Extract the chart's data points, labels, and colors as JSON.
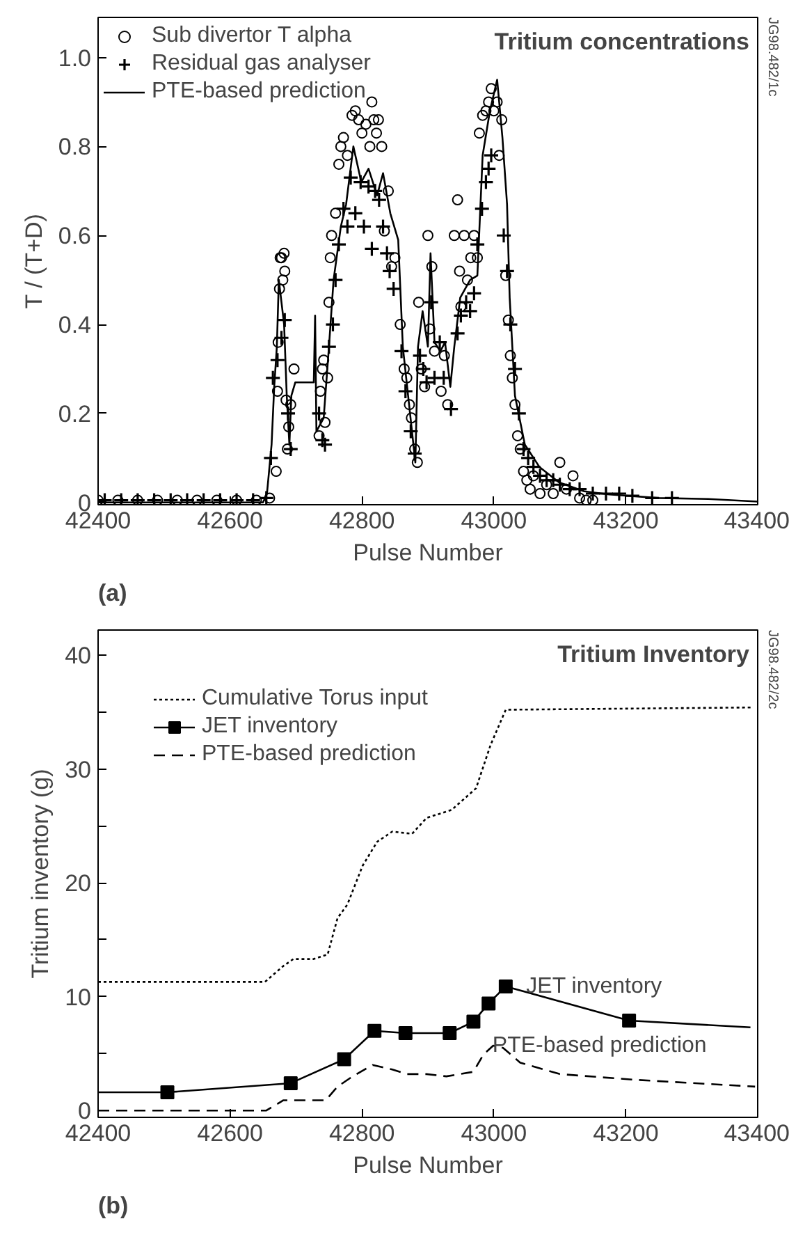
{
  "chart_data": [
    {
      "type": "line",
      "title": "Tritium concentrations",
      "xlabel": "Pulse Number",
      "ylabel": "T / (T+D)",
      "xlim": [
        42400,
        43400
      ],
      "ylim": [
        -0.005,
        1.09
      ],
      "xticks": [
        42400,
        42600,
        42800,
        43000,
        43200,
        43400
      ],
      "yticks": [
        {
          "value": 0,
          "label": "0"
        },
        0.2,
        0.4,
        0.6,
        0.8,
        {
          "value": 1,
          "label": "1.0"
        }
      ],
      "legend": "top left",
      "annotations": [
        "(a)",
        "JG98.482/1c"
      ],
      "series": [
        {
          "name": "Sub divertor T alpha",
          "type": "scatter",
          "marker": "circle",
          "color": "#000000",
          "x": [
            42400,
            42430,
            42460,
            42490,
            42520,
            42550,
            42580,
            42610,
            42640,
            42660,
            42670,
            42672,
            42673,
            42675,
            42676,
            42678,
            42680,
            42682,
            42683,
            42685,
            42687,
            42689,
            42692,
            42697,
            42735,
            42737,
            42740,
            42742,
            42744,
            42748,
            42750,
            42752,
            42754,
            42760,
            42765,
            42768,
            42772,
            42778,
            42785,
            42790,
            42795,
            42800,
            42806,
            42812,
            42815,
            42818,
            42822,
            42825,
            42830,
            42834,
            42840,
            42845,
            42850,
            42858,
            42864,
            42868,
            42872,
            42875,
            42880,
            42884,
            42886,
            42890,
            42895,
            42900,
            42903,
            42906,
            42910,
            42920,
            42925,
            42930,
            42940,
            42945,
            42948,
            42950,
            42955,
            42960,
            42965,
            42970,
            42975,
            42978,
            42983,
            42988,
            42992,
            42996,
            43000,
            43005,
            43008,
            43012,
            43018,
            43022,
            43025,
            43028,
            43032,
            43036,
            43040,
            43045,
            43050,
            43055,
            43060,
            43070,
            43080,
            43090,
            43100,
            43110,
            43120,
            43130,
            43140,
            43150
          ],
          "values": [
            0.005,
            0.005,
            0.005,
            0.005,
            0.005,
            0.005,
            0.005,
            0.005,
            0.005,
            0.01,
            0.07,
            0.25,
            0.36,
            0.48,
            0.55,
            0.55,
            0.5,
            0.56,
            0.52,
            0.23,
            0.12,
            0.17,
            0.22,
            0.3,
            0.15,
            0.25,
            0.3,
            0.32,
            0.18,
            0.28,
            0.45,
            0.55,
            0.6,
            0.65,
            0.76,
            0.8,
            0.82,
            0.78,
            0.87,
            0.88,
            0.86,
            0.83,
            0.85,
            0.8,
            0.9,
            0.86,
            0.83,
            0.86,
            0.8,
            0.61,
            0.7,
            0.53,
            0.55,
            0.4,
            0.3,
            0.28,
            0.22,
            0.19,
            0.12,
            0.09,
            0.45,
            0.3,
            0.26,
            0.6,
            0.39,
            0.53,
            0.34,
            0.25,
            0.33,
            0.22,
            0.6,
            0.68,
            0.52,
            0.44,
            0.6,
            0.5,
            0.55,
            0.6,
            0.55,
            0.83,
            0.87,
            0.88,
            0.9,
            0.93,
            0.88,
            0.9,
            0.78,
            0.86,
            0.51,
            0.41,
            0.33,
            0.28,
            0.22,
            0.15,
            0.12,
            0.07,
            0.05,
            0.03,
            0.06,
            0.02,
            0.04,
            0.02,
            0.09,
            0.03,
            0.06,
            0.01,
            0.005,
            0.005
          ]
        },
        {
          "name": "Residual gas analyser",
          "type": "scatter",
          "marker": "cross",
          "color": "#000000",
          "x": [
            42410,
            42435,
            42460,
            42485,
            42510,
            42535,
            42560,
            42585,
            42610,
            42635,
            42655,
            42662,
            42665,
            42672,
            42678,
            42683,
            42688,
            42692,
            42735,
            42740,
            42744,
            42750,
            42756,
            42760,
            42765,
            42772,
            42778,
            42783,
            42790,
            42798,
            42803,
            42810,
            42815,
            42820,
            42826,
            42832,
            42838,
            42842,
            42848,
            42860,
            42866,
            42874,
            42880,
            42888,
            42893,
            42898,
            42905,
            42910,
            42918,
            42924,
            42935,
            42945,
            42950,
            42958,
            42964,
            42970,
            42975,
            42982,
            42988,
            42992,
            42996,
            43015,
            43020,
            43025,
            43032,
            43038,
            43045,
            43052,
            43060,
            43070,
            43080,
            43090,
            43100,
            43115,
            43130,
            43150,
            43170,
            43190,
            43210,
            43240,
            43270
          ],
          "values": [
            0.005,
            0.005,
            0.005,
            0.005,
            0.005,
            0.005,
            0.005,
            0.005,
            0.005,
            0.005,
            0.01,
            0.1,
            0.28,
            0.32,
            0.37,
            0.41,
            0.2,
            0.12,
            0.2,
            0.14,
            0.13,
            0.35,
            0.4,
            0.5,
            0.58,
            0.66,
            0.62,
            0.73,
            0.65,
            0.72,
            0.62,
            0.71,
            0.57,
            0.7,
            0.68,
            0.62,
            0.56,
            0.52,
            0.48,
            0.34,
            0.25,
            0.16,
            0.11,
            0.33,
            0.3,
            0.27,
            0.45,
            0.28,
            0.36,
            0.28,
            0.21,
            0.38,
            0.42,
            0.45,
            0.43,
            0.47,
            0.58,
            0.66,
            0.72,
            0.75,
            0.78,
            0.6,
            0.52,
            0.4,
            0.3,
            0.2,
            0.12,
            0.1,
            0.08,
            0.06,
            0.05,
            0.05,
            0.04,
            0.03,
            0.03,
            0.02,
            0.02,
            0.02,
            0.015,
            0.01,
            0.01
          ]
        },
        {
          "name": "PTE-based prediction",
          "line_style": "solid",
          "color": "#000000",
          "x": [
            42400,
            42500,
            42650,
            42656,
            42663,
            42667,
            42671,
            42674,
            42682,
            42686,
            42690,
            42693,
            42699,
            42727,
            42729,
            42731,
            42742,
            42750,
            42757,
            42768,
            42776,
            42787,
            42799,
            42810,
            42823,
            42832,
            42843,
            42855,
            42862,
            42870,
            42881,
            42885,
            42892,
            42900,
            42904,
            42910,
            42919,
            42926,
            42934,
            42940,
            42949,
            42964,
            42975,
            42983,
            42994,
            43005,
            43013,
            43020,
            43024,
            43032,
            43047,
            43069,
            43099,
            43137,
            43175,
            43250,
            43325,
            43400
          ],
          "values": [
            0.0,
            0.0,
            0.0,
            0.02,
            0.13,
            0.26,
            0.35,
            0.5,
            0.4,
            0.24,
            0.13,
            0.24,
            0.27,
            0.27,
            0.42,
            0.16,
            0.19,
            0.35,
            0.5,
            0.62,
            0.67,
            0.8,
            0.72,
            0.75,
            0.69,
            0.74,
            0.65,
            0.59,
            0.35,
            0.24,
            0.09,
            0.35,
            0.43,
            0.35,
            0.56,
            0.36,
            0.34,
            0.36,
            0.26,
            0.35,
            0.46,
            0.5,
            0.51,
            0.78,
            0.88,
            0.95,
            0.82,
            0.67,
            0.46,
            0.24,
            0.13,
            0.08,
            0.045,
            0.025,
            0.018,
            0.01,
            0.008,
            0.002
          ]
        }
      ]
    },
    {
      "type": "line",
      "title": "Tritium Inventory",
      "xlabel": "Pulse Number",
      "ylabel": "Tritium inventory (g)",
      "xlim": [
        42400,
        43400
      ],
      "ylim": [
        -0.6,
        42.2
      ],
      "xticks": [
        42400,
        42600,
        42800,
        43000,
        43200,
        43400
      ],
      "yticks": [
        0,
        {
          "value": 5,
          "label": null
        },
        10,
        {
          "value": 15,
          "label": null
        },
        20,
        {
          "value": 25,
          "label": null
        },
        30,
        {
          "value": 35,
          "label": null
        },
        40
      ],
      "legend": "top left",
      "annotations": [
        "(b)",
        "JG98.482/2c",
        {
          "text": "JET inventory",
          "x": 43205,
          "y": 7.9
        },
        {
          "text": "PTE-based prediction",
          "x": 43213,
          "y": 2.7
        }
      ],
      "series": [
        {
          "name": "Cumulative Torus input",
          "line_style": "dotted",
          "color": "#000000",
          "x": [
            42400,
            42653,
            42681,
            42696,
            42726,
            42748,
            42763,
            42778,
            42801,
            42823,
            42846,
            42876,
            42898,
            42936,
            42973,
            42995,
            43018,
            43392
          ],
          "values": [
            11.3,
            11.3,
            12.7,
            13.3,
            13.3,
            13.7,
            16.9,
            18.1,
            21.5,
            23.6,
            24.5,
            24.3,
            25.7,
            26.4,
            28.3,
            32.1,
            35.2,
            35.4
          ]
        },
        {
          "line_style": "solid",
          "color": "#000000",
          "x": [
            42400,
            42505,
            42692,
            42773,
            42819,
            42866,
            42933,
            42969,
            42992,
            43018,
            43205,
            43389
          ],
          "values": [
            1.6,
            1.6,
            2.4,
            4.5,
            7.0,
            6.8,
            6.8,
            7.8,
            9.4,
            10.9,
            7.9,
            7.3
          ]
        },
        {
          "name": "JET inventory",
          "type": "scatter",
          "marker": "square",
          "color": "#000000",
          "x": [
            42505,
            42692,
            42773,
            42819,
            42866,
            42933,
            42969,
            42992,
            43018,
            43205
          ],
          "values": [
            1.6,
            2.4,
            4.5,
            7.0,
            6.8,
            6.8,
            7.8,
            9.4,
            10.9,
            7.9
          ]
        },
        {
          "name": "PTE-based prediction",
          "line_style": "dashed",
          "color": "#000000",
          "x": [
            42400,
            42655,
            42681,
            42745,
            42763,
            42786,
            42816,
            42846,
            42868,
            42898,
            42928,
            42969,
            42984,
            42999,
            43014,
            43040,
            43100,
            43213,
            43396
          ],
          "values": [
            0.0,
            0.0,
            0.9,
            0.9,
            2.1,
            3.0,
            4.0,
            3.6,
            3.2,
            3.2,
            3.0,
            3.4,
            4.9,
            5.7,
            5.5,
            4.2,
            3.2,
            2.7,
            2.1
          ]
        }
      ]
    }
  ]
}
